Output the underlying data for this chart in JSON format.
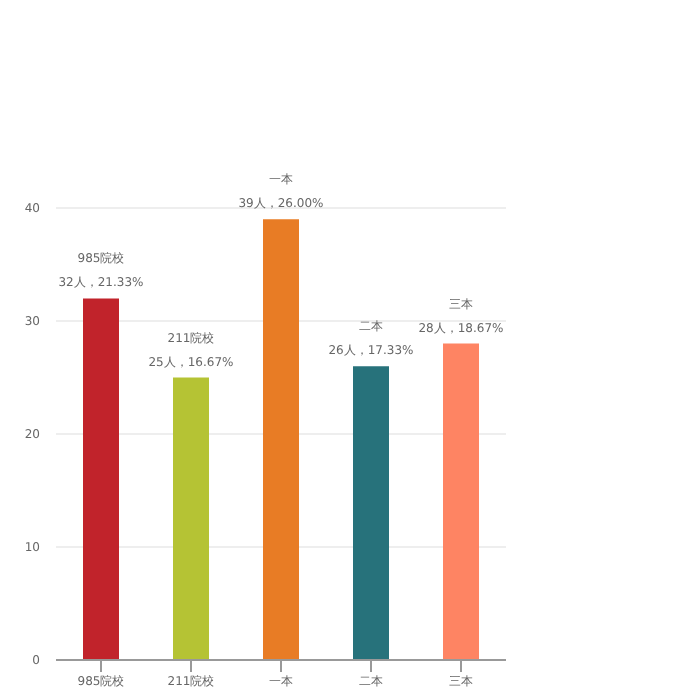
{
  "chart_data": {
    "type": "bar",
    "categories": [
      "985院校",
      "211院校",
      "一本",
      "二本",
      "三本"
    ],
    "values": [
      32,
      25,
      39,
      26,
      28
    ],
    "colors": [
      "#c1232b",
      "#b5c334",
      "#e87c25",
      "#27727b",
      "#fe8463"
    ],
    "value_labels": [
      "32人，21.33%",
      "25人，16.67%",
      "39人，26.00%",
      "26人，17.33%",
      "28人，18.67%"
    ],
    "ylim": [
      0,
      40
    ],
    "yticks": [
      0,
      10,
      20,
      30,
      40
    ],
    "grid": "y",
    "legend": false
  }
}
